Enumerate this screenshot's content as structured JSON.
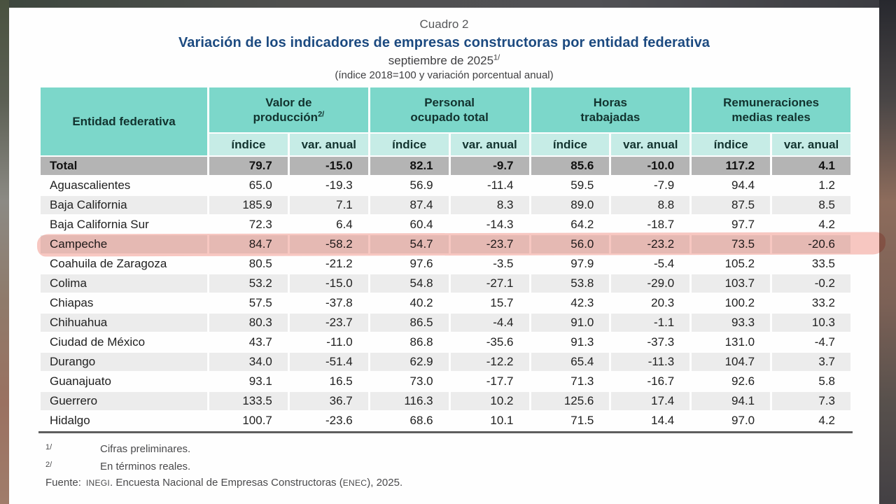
{
  "page": {
    "pretitle": "Cuadro 2",
    "title": "Variación de los indicadores de empresas constructoras por entidad federativa",
    "subtitle": "septiembre de 2025",
    "subtitle_note_marker": "1/",
    "units_line": "(índice 2018=100 y variación porcentual anual)"
  },
  "table": {
    "entity_header": "Entidad federativa",
    "groups": [
      {
        "label": "Valor de\nproducción",
        "note_marker": "2/"
      },
      {
        "label": "Personal\nocupado total"
      },
      {
        "label": "Horas\ntrabajadas"
      },
      {
        "label": "Remuneraciones\nmedias reales"
      }
    ],
    "subheaders": [
      "índice",
      "var. anual"
    ],
    "total_row": {
      "label": "Total",
      "values": [
        "79.7",
        "-15.0",
        "82.1",
        "-9.7",
        "85.6",
        "-10.0",
        "117.2",
        "4.1"
      ]
    },
    "rows": [
      {
        "entity": "Aguascalientes",
        "values": [
          "65.0",
          "-19.3",
          "56.9",
          "-11.4",
          "59.5",
          "-7.9",
          "94.4",
          "1.2"
        ]
      },
      {
        "entity": "Baja California",
        "values": [
          "185.9",
          "7.1",
          "87.4",
          "8.3",
          "89.0",
          "8.8",
          "87.5",
          "8.5"
        ]
      },
      {
        "entity": "Baja California Sur",
        "values": [
          "72.3",
          "6.4",
          "60.4",
          "-14.3",
          "64.2",
          "-18.7",
          "97.7",
          "4.2"
        ]
      },
      {
        "entity": "Campeche",
        "values": [
          "84.7",
          "-58.2",
          "54.7",
          "-23.7",
          "56.0",
          "-23.2",
          "73.5",
          "-20.6"
        ]
      },
      {
        "entity": "Coahuila de Zaragoza",
        "values": [
          "80.5",
          "-21.2",
          "97.6",
          "-3.5",
          "97.9",
          "-5.4",
          "105.2",
          "33.5"
        ]
      },
      {
        "entity": "Colima",
        "values": [
          "53.2",
          "-15.0",
          "54.8",
          "-27.1",
          "53.8",
          "-29.0",
          "103.7",
          "-0.2"
        ]
      },
      {
        "entity": "Chiapas",
        "values": [
          "57.5",
          "-37.8",
          "40.2",
          "15.7",
          "42.3",
          "20.3",
          "100.2",
          "33.2"
        ]
      },
      {
        "entity": "Chihuahua",
        "values": [
          "80.3",
          "-23.7",
          "86.5",
          "-4.4",
          "91.0",
          "-1.1",
          "93.3",
          "10.3"
        ]
      },
      {
        "entity": "Ciudad de México",
        "values": [
          "43.7",
          "-11.0",
          "86.8",
          "-35.6",
          "91.3",
          "-37.3",
          "131.0",
          "-4.7"
        ]
      },
      {
        "entity": "Durango",
        "values": [
          "34.0",
          "-51.4",
          "62.9",
          "-12.2",
          "65.4",
          "-11.3",
          "104.7",
          "3.7"
        ]
      },
      {
        "entity": "Guanajuato",
        "values": [
          "93.1",
          "16.5",
          "73.0",
          "-17.7",
          "71.3",
          "-16.7",
          "92.6",
          "5.8"
        ]
      },
      {
        "entity": "Guerrero",
        "values": [
          "133.5",
          "36.7",
          "116.3",
          "10.2",
          "125.6",
          "17.4",
          "94.1",
          "7.3"
        ]
      },
      {
        "entity": "Hidalgo",
        "values": [
          "100.7",
          "-23.6",
          "68.6",
          "10.1",
          "71.5",
          "14.4",
          "97.0",
          "4.2"
        ]
      }
    ],
    "highlighted_entity": "Campeche",
    "highlight_color": "#f3a096"
  },
  "footnotes": [
    {
      "marker": "1/",
      "text": "Cifras preliminares."
    },
    {
      "marker": "2/",
      "text": "En términos reales."
    }
  ],
  "source": {
    "label": "Fuente:",
    "org": "INEGI",
    "after_org": ". Encuesta Nacional de Empresas Constructoras (",
    "acronym": "ENEC",
    "after_acronym": "), 2025."
  }
}
